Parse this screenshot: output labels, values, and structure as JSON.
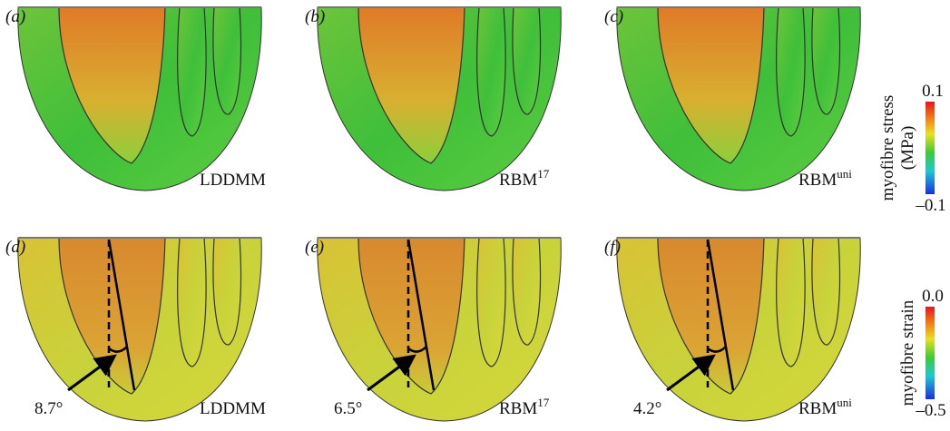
{
  "panels": [
    {
      "label": "(a)",
      "model": {
        "base": "LDDMM"
      }
    },
    {
      "label": "(b)",
      "model": {
        "base": "RBM",
        "sup": "17"
      }
    },
    {
      "label": "(c)",
      "model": {
        "base": "RBM",
        "sup": "uni"
      }
    },
    {
      "label": "(d)",
      "model": {
        "base": "LDDMM"
      },
      "angle": "8.7°"
    },
    {
      "label": "(e)",
      "model": {
        "base": "RBM",
        "sup": "17"
      },
      "angle": "6.5°"
    },
    {
      "label": "(f)",
      "model": {
        "base": "RBM",
        "sup": "uni"
      },
      "angle": "4.2°"
    }
  ],
  "colorbars": [
    {
      "label": [
        "myofibre stress",
        "(MPa)"
      ],
      "max": "0.1",
      "min": "–0.1"
    },
    {
      "label": [
        "myofibre strain"
      ],
      "max": "0.0",
      "min": "–0.5"
    }
  ]
}
